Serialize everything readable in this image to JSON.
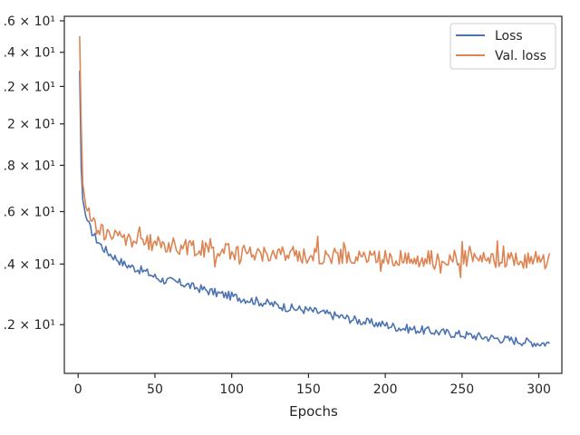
{
  "chart_data": {
    "type": "line",
    "xlabel": "Epochs",
    "ylabel": "",
    "title": "",
    "xlim": [
      -9,
      315
    ],
    "ylim": [
      10.6,
      26.3
    ],
    "yscale": "log",
    "x_ticks": [
      0,
      50,
      100,
      150,
      200,
      250,
      300
    ],
    "y_ticks": [
      {
        "value": 12,
        "label": ".2 × 10¹"
      },
      {
        "value": 14,
        "label": ".4 × 10¹"
      },
      {
        "value": 16,
        "label": ".6 × 10¹"
      },
      {
        "value": 18,
        "label": ".8 × 10¹"
      },
      {
        "value": 20,
        "label": "2 × 10¹"
      },
      {
        "value": 22,
        "label": ".2 × 10¹"
      },
      {
        "value": 24,
        "label": ".4 × 10¹"
      },
      {
        "value": 26,
        "label": ".6 × 10¹"
      }
    ],
    "grid": false,
    "legend_position": "top-right",
    "series": [
      {
        "name": "Loss",
        "color": "#4c72b0",
        "x": [
          1,
          2,
          3,
          5,
          8,
          12,
          16,
          20,
          25,
          30,
          35,
          40,
          45,
          50,
          55,
          60,
          65,
          70,
          75,
          80,
          90,
          100,
          110,
          120,
          130,
          140,
          150,
          160,
          170,
          180,
          190,
          200,
          210,
          220,
          230,
          240,
          250,
          260,
          270,
          280,
          290,
          300,
          307
        ],
        "y": [
          22.9,
          17.9,
          16.5,
          15.8,
          15.3,
          14.9,
          14.6,
          14.4,
          14.2,
          14.0,
          13.9,
          13.8,
          13.7,
          13.55,
          13.45,
          13.4,
          13.35,
          13.3,
          13.2,
          13.15,
          13.0,
          12.9,
          12.8,
          12.7,
          12.6,
          12.5,
          12.45,
          12.35,
          12.25,
          12.15,
          12.05,
          12.0,
          11.9,
          11.85,
          11.8,
          11.75,
          11.7,
          11.65,
          11.6,
          11.55,
          11.5,
          11.45,
          11.45
        ]
      },
      {
        "name": "Val. loss",
        "color": "#dd8452",
        "x": [
          1,
          2,
          3,
          5,
          8,
          12,
          16,
          20,
          25,
          30,
          35,
          40,
          45,
          50,
          55,
          60,
          65,
          70,
          75,
          80,
          90,
          100,
          110,
          120,
          130,
          140,
          150,
          160,
          170,
          180,
          190,
          200,
          210,
          220,
          230,
          240,
          250,
          260,
          270,
          280,
          290,
          300,
          307
        ],
        "y": [
          25.0,
          20.0,
          17.2,
          16.2,
          15.7,
          15.4,
          15.2,
          15.1,
          15.0,
          14.95,
          14.9,
          14.85,
          14.8,
          14.75,
          14.7,
          14.7,
          14.65,
          14.6,
          14.6,
          14.55,
          14.5,
          14.45,
          14.4,
          14.4,
          14.35,
          14.35,
          14.3,
          14.3,
          14.3,
          14.25,
          14.25,
          14.25,
          14.2,
          14.2,
          14.2,
          14.2,
          14.2,
          14.15,
          14.15,
          14.15,
          14.15,
          14.15,
          14.1
        ]
      }
    ]
  }
}
